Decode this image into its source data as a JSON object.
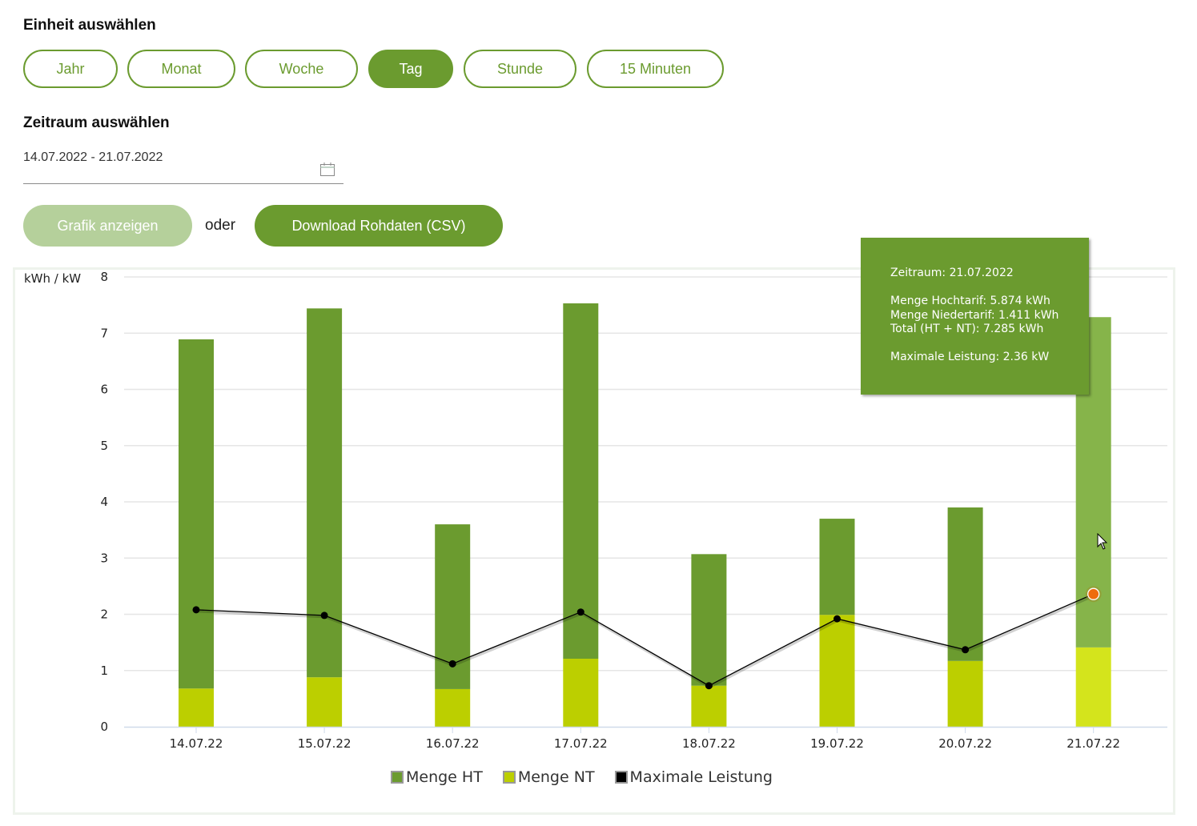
{
  "unit_section": {
    "heading": "Einheit auswählen",
    "options": [
      {
        "label": "Jahr",
        "active": false
      },
      {
        "label": "Monat",
        "active": false
      },
      {
        "label": "Woche",
        "active": false
      },
      {
        "label": "Tag",
        "active": true
      },
      {
        "label": "Stunde",
        "active": false
      },
      {
        "label": "15 Minuten",
        "active": false
      }
    ]
  },
  "period_section": {
    "heading": "Zeitraum auswählen",
    "date_range": "14.07.2022 - 21.07.2022",
    "calendar_icon": "calendar-icon"
  },
  "actions": {
    "show_chart_label": "Grafik anzeigen",
    "separator": "oder",
    "download_label": "Download Rohdaten (CSV)"
  },
  "colors": {
    "brand": "#6b9b2f",
    "brand_light": "#b5d09b",
    "ht": "#6b9b2f",
    "ht_hover": "#86b44a",
    "nt": "#bccf00",
    "nt_hover": "#d4e41c",
    "line": "#000000",
    "highlight_point": "#ee6c0d"
  },
  "tooltip": {
    "title": "Zeitraum: 21.07.2022",
    "ht": "Menge Hochtarif: 5.874 kWh",
    "nt": "Menge Niedertarif: 1.411 kWh",
    "total": "Total (HT + NT): 7.285 kWh",
    "max": "Maximale Leistung: 2.36 kW"
  },
  "chart_data": {
    "type": "bar",
    "stacked": true,
    "title": "",
    "xlabel": "",
    "ylabel": "kWh / kW",
    "ylim": [
      0,
      8
    ],
    "yticks": [
      "0",
      "1",
      "2",
      "3",
      "4",
      "5",
      "6",
      "7",
      "8"
    ],
    "grid": true,
    "categories": [
      "14.07.22",
      "15.07.22",
      "16.07.22",
      "17.07.22",
      "18.07.22",
      "19.07.22",
      "20.07.22",
      "21.07.22"
    ],
    "series": [
      {
        "name": "Menge NT",
        "type": "bar",
        "values": [
          0.68,
          0.88,
          0.67,
          1.21,
          0.73,
          1.99,
          1.17,
          1.411
        ]
      },
      {
        "name": "Menge HT",
        "type": "bar",
        "values": [
          6.21,
          6.56,
          2.93,
          6.32,
          2.34,
          1.71,
          2.73,
          5.874
        ]
      },
      {
        "name": "Maximale Leistung",
        "type": "line",
        "values": [
          2.08,
          1.98,
          1.12,
          2.04,
          0.73,
          1.92,
          1.37,
          2.36
        ]
      }
    ],
    "legend": [
      "Menge HT",
      "Menge NT",
      "Maximale Leistung"
    ],
    "legend_position": "bottom",
    "highlighted_index": 7
  }
}
